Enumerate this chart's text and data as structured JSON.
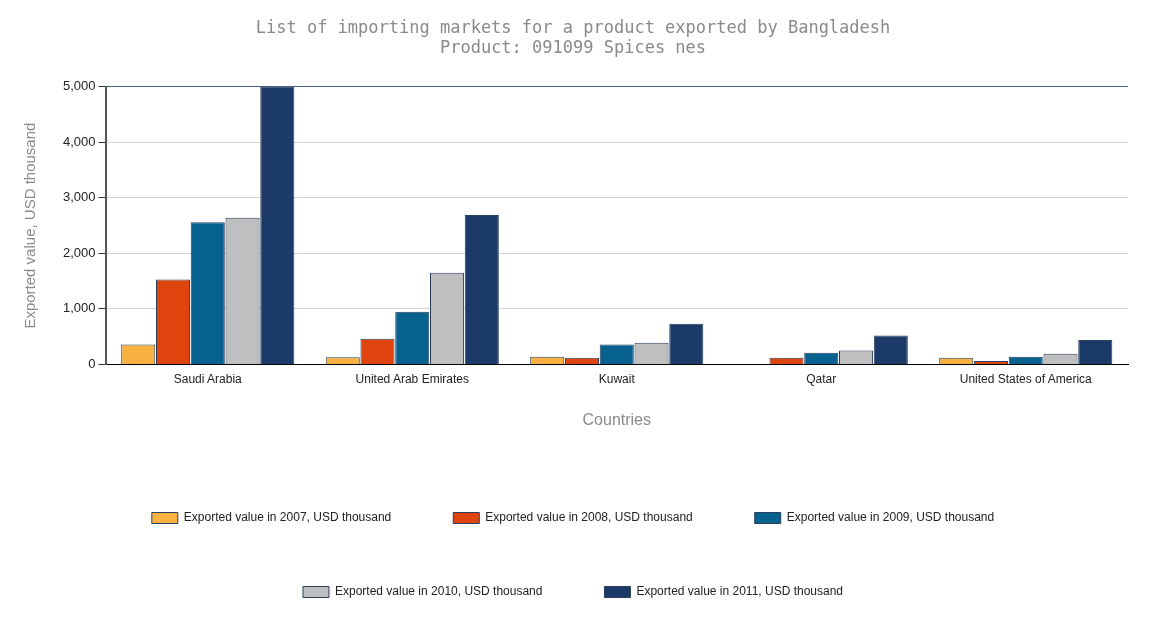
{
  "chart_data": {
    "type": "bar",
    "title": "List of importing markets for a product exported by Bangladesh",
    "subtitle": "Product: 091099 Spices nes",
    "xlabel": "Countries",
    "ylabel": "Exported value, USD thousand",
    "categories": [
      "Saudi Arabia",
      "United Arab Emirates",
      "Kuwait",
      "Qatar",
      "United States of America"
    ],
    "series": [
      {
        "name": "Exported value in 2007, USD thousand",
        "color": "#f9b241",
        "values": [
          360,
          130,
          140,
          null,
          120
        ]
      },
      {
        "name": "Exported value in 2008, USD thousand",
        "color": "#e0440e",
        "values": [
          1530,
          460,
          120,
          120,
          60
        ]
      },
      {
        "name": "Exported value in 2009, USD thousand",
        "color": "#08628f",
        "values": [
          2560,
          950,
          360,
          210,
          140
        ]
      },
      {
        "name": "Exported value in 2010, USD thousand",
        "color": "#bfbfbf",
        "values": [
          2640,
          1650,
          390,
          250,
          190
        ]
      },
      {
        "name": "Exported value in 2011, USD thousand",
        "color": "#1b3a68",
        "values": [
          5000,
          2690,
          730,
          520,
          440
        ]
      }
    ],
    "ylim": [
      0,
      5000
    ],
    "yticks": [
      {
        "value": 0,
        "label": "0"
      },
      {
        "value": 1000,
        "label": "1,000"
      },
      {
        "value": 2000,
        "label": "2,000"
      },
      {
        "value": 3000,
        "label": "3,000"
      },
      {
        "value": 4000,
        "label": "4,000"
      },
      {
        "value": 5000,
        "label": "5,000"
      }
    ],
    "grid": "y",
    "legend": "bottom"
  }
}
